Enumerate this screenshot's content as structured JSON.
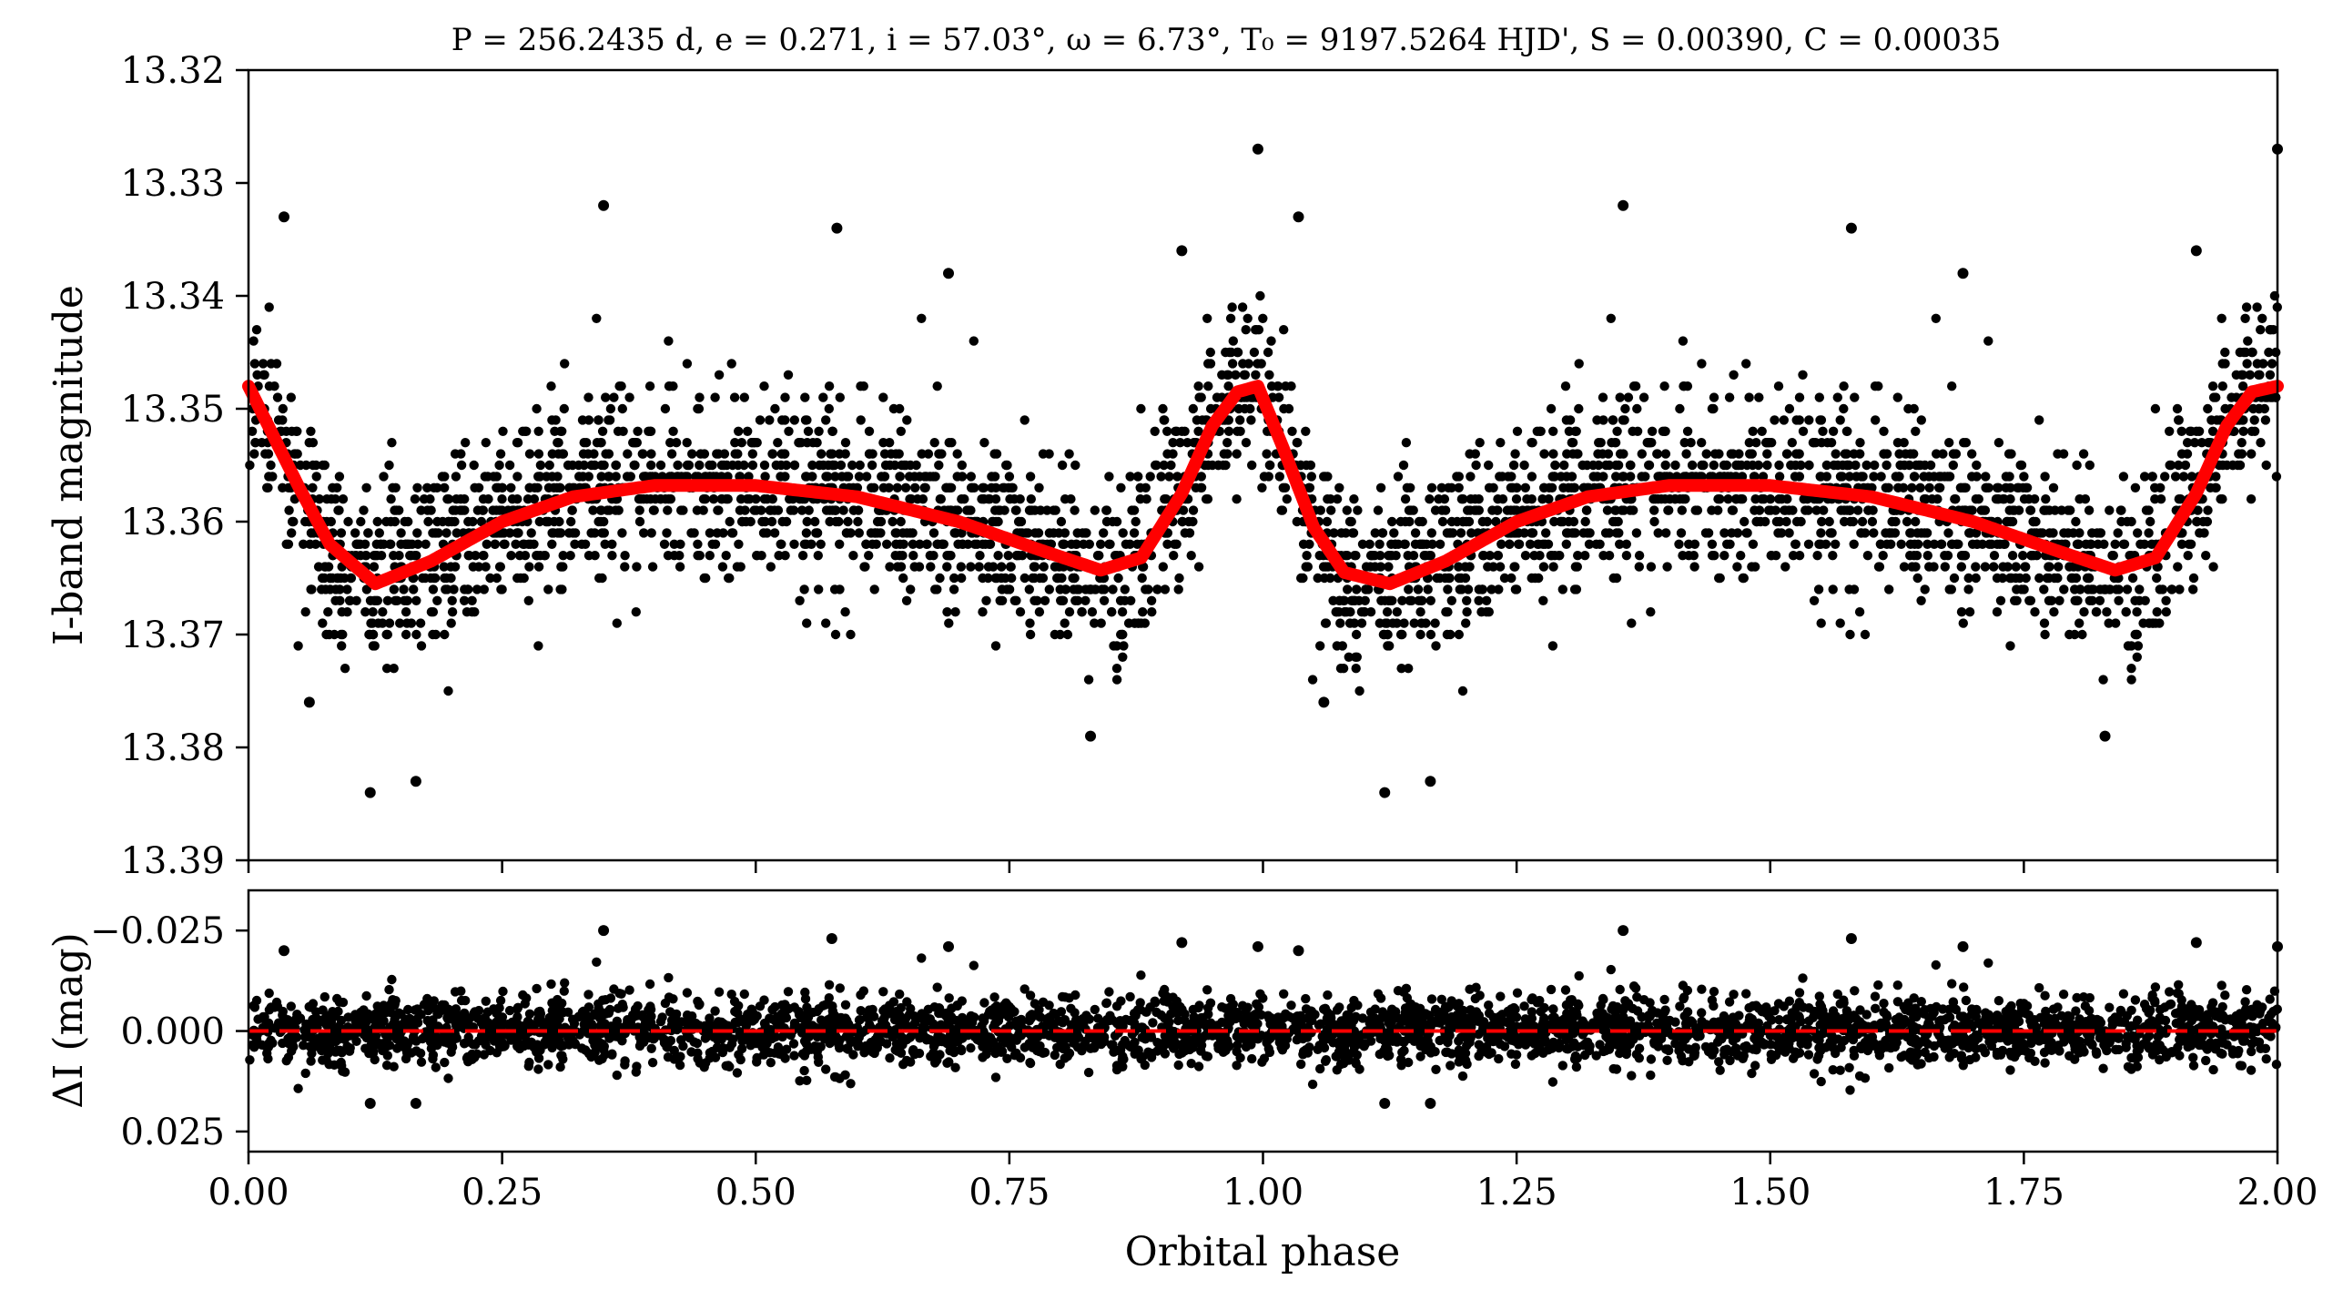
{
  "chart_data": [
    {
      "type": "scatter",
      "panel": "top",
      "title": "P = 256.2435 d, e = 0.271, i = 57.03°, ω = 6.73°, T₀ = 9197.5264 HJD', S = 0.00390, C = 0.00035",
      "xlabel": "",
      "ylabel": "I-band magnitude",
      "xlim": [
        0.0,
        2.0
      ],
      "ylim": [
        13.39,
        13.32
      ],
      "y_inverted": true,
      "yticks": [
        "13.32",
        "13.33",
        "13.34",
        "13.35",
        "13.36",
        "13.37",
        "13.38",
        "13.39"
      ],
      "grid": false,
      "series": [
        {
          "kind": "points",
          "color": "#000000",
          "baseline": 13.358,
          "scatter_sd": 0.004,
          "count_per_phase_unit": 1700,
          "outliers": [
            [
              0.035,
              13.333
            ],
            [
              0.35,
              13.332
            ],
            [
              0.58,
              13.334
            ],
            [
              0.69,
              13.338
            ],
            [
              0.92,
              13.336
            ],
            [
              0.995,
              13.327
            ],
            [
              1.035,
              13.333
            ],
            [
              1.355,
              13.332
            ],
            [
              1.58,
              13.334
            ],
            [
              1.69,
              13.338
            ],
            [
              1.92,
              13.336
            ],
            [
              2.0,
              13.327
            ],
            [
              0.12,
              13.384
            ],
            [
              0.165,
              13.383
            ],
            [
              1.12,
              13.384
            ],
            [
              1.165,
              13.383
            ],
            [
              0.83,
              13.379
            ],
            [
              1.83,
              13.379
            ],
            [
              0.06,
              13.376
            ],
            [
              1.06,
              13.376
            ]
          ]
        },
        {
          "kind": "model_curve",
          "color": "#ff0000",
          "x": [
            0.0,
            0.05,
            0.08,
            0.125,
            0.18,
            0.25,
            0.32,
            0.4,
            0.5,
            0.6,
            0.7,
            0.78,
            0.84,
            0.88,
            0.92,
            0.95,
            0.975,
            0.995,
            1.02,
            1.05,
            1.08,
            1.125,
            1.18,
            1.25,
            1.32,
            1.4,
            1.5,
            1.6,
            1.7,
            1.78,
            1.84,
            1.88,
            1.92,
            1.95,
            1.975,
            2.0
          ],
          "y": [
            13.348,
            13.357,
            13.362,
            13.3655,
            13.3635,
            13.36,
            13.3578,
            13.3568,
            13.3568,
            13.3578,
            13.36,
            13.3625,
            13.3643,
            13.3632,
            13.3575,
            13.3515,
            13.3485,
            13.348,
            13.3535,
            13.3605,
            13.3645,
            13.3655,
            13.3635,
            13.36,
            13.3578,
            13.3568,
            13.3568,
            13.3578,
            13.36,
            13.3625,
            13.3643,
            13.3632,
            13.3575,
            13.3515,
            13.3485,
            13.348
          ]
        }
      ]
    },
    {
      "type": "scatter",
      "panel": "bottom",
      "xlabel": "Orbital phase",
      "ylabel": "ΔI (mag)",
      "xlim": [
        0.0,
        2.0
      ],
      "ylim": [
        0.03,
        -0.035
      ],
      "y_inverted": true,
      "xticks": [
        "0.00",
        "0.25",
        "0.50",
        "0.75",
        "1.00",
        "1.25",
        "1.50",
        "1.75",
        "2.00"
      ],
      "yticks": [
        "−0.025",
        "0.000",
        "0.025"
      ],
      "grid": false,
      "series": [
        {
          "kind": "points",
          "color": "#000000",
          "baseline": 0.0,
          "scatter_sd": 0.004,
          "count_per_phase_unit": 1700,
          "outliers": [
            [
              0.035,
              -0.02
            ],
            [
              0.35,
              -0.025
            ],
            [
              0.575,
              -0.023
            ],
            [
              0.69,
              -0.021
            ],
            [
              0.92,
              -0.022
            ],
            [
              0.995,
              -0.021
            ],
            [
              1.035,
              -0.02
            ],
            [
              1.355,
              -0.025
            ],
            [
              1.58,
              -0.023
            ],
            [
              1.69,
              -0.021
            ],
            [
              1.92,
              -0.022
            ],
            [
              2.0,
              -0.021
            ],
            [
              0.12,
              0.018
            ],
            [
              0.165,
              0.018
            ],
            [
              1.12,
              0.018
            ],
            [
              1.165,
              0.018
            ]
          ]
        },
        {
          "kind": "reference_line",
          "color": "#ff0000",
          "style": "dashed",
          "y": 0.0
        }
      ]
    }
  ]
}
